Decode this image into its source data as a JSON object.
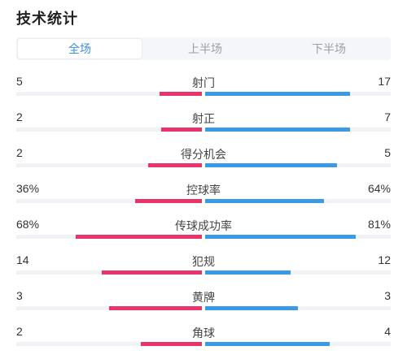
{
  "title": "技术统计",
  "tabs": [
    {
      "label": "全场",
      "active": true
    },
    {
      "label": "上半场",
      "active": false
    },
    {
      "label": "下半场",
      "active": false
    }
  ],
  "colors": {
    "home": "#e8336b",
    "away": "#3a9ae6",
    "active_tab": "#3a8ee6"
  },
  "stats": [
    {
      "label": "射门",
      "left": "5",
      "right": "17",
      "left_fill": 0.23,
      "right_fill": 0.78
    },
    {
      "label": "射正",
      "left": "2",
      "right": "7",
      "left_fill": 0.22,
      "right_fill": 0.78
    },
    {
      "label": "得分机会",
      "left": "2",
      "right": "5",
      "left_fill": 0.29,
      "right_fill": 0.71
    },
    {
      "label": "控球率",
      "left": "36%",
      "right": "64%",
      "left_fill": 0.36,
      "right_fill": 0.64
    },
    {
      "label": "传球成功率",
      "left": "68%",
      "right": "81%",
      "left_fill": 0.68,
      "right_fill": 0.81
    },
    {
      "label": "犯规",
      "left": "14",
      "right": "12",
      "left_fill": 0.54,
      "right_fill": 0.46
    },
    {
      "label": "黄牌",
      "left": "3",
      "right": "3",
      "left_fill": 0.5,
      "right_fill": 0.5
    },
    {
      "label": "角球",
      "left": "2",
      "right": "4",
      "left_fill": 0.33,
      "right_fill": 0.67
    }
  ]
}
